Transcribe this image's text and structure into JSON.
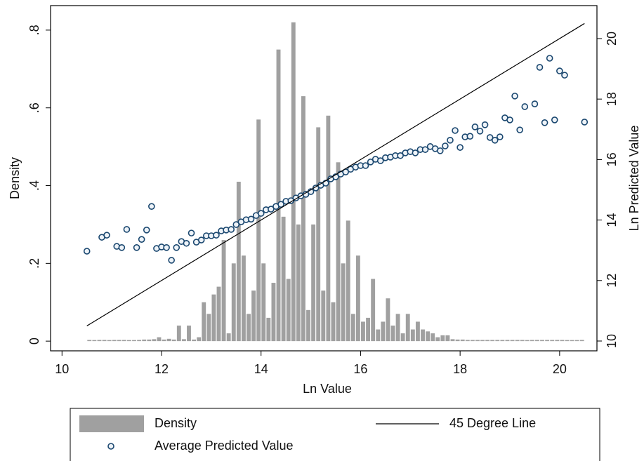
{
  "chart_data": {
    "type": "combo",
    "xlabel": "Ln Value",
    "ylabel": "Density",
    "y2label": "Ln Predicted Value",
    "xlim": [
      9.77,
      20.75
    ],
    "xticks": [
      10,
      12,
      14,
      16,
      18,
      20
    ],
    "ylim": [
      -0.025,
      0.863
    ],
    "yticks": [
      {
        "value": 0,
        "label": "0"
      },
      {
        "value": 0.2,
        "label": ".2"
      },
      {
        "value": 0.4,
        "label": ".4"
      },
      {
        "value": 0.6,
        "label": ".6"
      },
      {
        "value": 0.8,
        "label": ".8"
      }
    ],
    "y2lim": [
      9.675,
      21.09
    ],
    "y2ticks": [
      10,
      12,
      14,
      16,
      18,
      20
    ],
    "grid": false,
    "legend": "bottom",
    "series": [
      {
        "name": "Density",
        "type": "histogram",
        "color": "#a0a0a0",
        "bins": [
          10.5,
          10.6,
          10.7,
          10.8,
          10.9,
          11.0,
          11.1,
          11.2,
          11.3,
          11.4,
          11.5,
          11.6,
          11.7,
          11.8,
          11.9,
          12.0,
          12.1,
          12.2,
          12.3,
          12.4,
          12.5,
          12.6,
          12.7,
          12.8,
          12.9,
          13.0,
          13.1,
          13.2,
          13.3,
          13.4,
          13.5,
          13.6,
          13.7,
          13.8,
          13.9,
          14.0,
          14.1,
          14.2,
          14.3,
          14.4,
          14.5,
          14.6,
          14.7,
          14.8,
          14.9,
          15.0,
          15.1,
          15.2,
          15.3,
          15.4,
          15.5,
          15.6,
          15.7,
          15.8,
          15.9,
          16.0,
          16.1,
          16.2,
          16.3,
          16.4,
          16.5,
          16.6,
          16.7,
          16.8,
          16.9,
          17.0,
          17.1,
          17.2,
          17.3,
          17.4,
          17.5,
          17.6,
          17.7,
          17.8,
          17.9,
          18.0,
          18.1,
          18.2,
          18.3,
          18.4,
          18.5,
          18.6,
          18.7,
          18.8,
          18.9,
          19.0,
          19.1,
          19.2,
          19.3,
          19.4,
          19.5,
          19.6,
          19.7,
          19.8,
          19.9,
          20.0,
          20.1,
          20.2,
          20.3,
          20.4,
          20.5
        ],
        "values": [
          0.003,
          0,
          0.003,
          0.003,
          0,
          0.003,
          0.003,
          0.003,
          0,
          0,
          0.003,
          0.004,
          0.004,
          0.005,
          0.01,
          0.004,
          0.006,
          0.004,
          0.04,
          0.005,
          0.04,
          0.004,
          0.01,
          0.1,
          0.07,
          0.12,
          0.14,
          0.26,
          0.02,
          0.2,
          0.41,
          0.22,
          0.07,
          0.13,
          0.57,
          0.2,
          0.06,
          0.15,
          0.75,
          0.32,
          0.16,
          0.82,
          0.3,
          0.63,
          0.08,
          0.3,
          0.55,
          0.13,
          0.58,
          0.1,
          0.46,
          0.2,
          0.31,
          0.07,
          0.22,
          0.05,
          0.06,
          0.16,
          0.03,
          0.05,
          0.11,
          0.04,
          0.07,
          0.02,
          0.07,
          0.03,
          0.05,
          0.03,
          0.025,
          0.02,
          0.01,
          0.015,
          0.015,
          0.005,
          0.004,
          0.004,
          0.003,
          0.003,
          0.003,
          0.003,
          0.003,
          0.003,
          0.003,
          0.003,
          0.003,
          0.003,
          0.003,
          0.003,
          0,
          0.003,
          0.003,
          0.003,
          0.003,
          0.003,
          0.003,
          0.003,
          0,
          0,
          0,
          0.003
        ]
      },
      {
        "name": "Average Predicted Value",
        "type": "scatter",
        "axis": "y2",
        "color": "#1a476f",
        "x": [
          10.5,
          10.8,
          10.9,
          11.1,
          11.2,
          11.3,
          11.5,
          11.6,
          11.7,
          11.8,
          11.9,
          12.0,
          12.1,
          12.2,
          12.3,
          12.4,
          12.5,
          12.6,
          12.7,
          12.8,
          12.9,
          13.0,
          13.1,
          13.2,
          13.3,
          13.4,
          13.5,
          13.6,
          13.7,
          13.8,
          13.9,
          14.0,
          14.1,
          14.2,
          14.3,
          14.4,
          14.5,
          14.6,
          14.7,
          14.8,
          14.9,
          15.0,
          15.1,
          15.2,
          15.3,
          15.4,
          15.5,
          15.6,
          15.7,
          15.8,
          15.9,
          16.0,
          16.1,
          16.2,
          16.3,
          16.4,
          16.5,
          16.6,
          16.7,
          16.8,
          16.9,
          17.0,
          17.1,
          17.2,
          17.3,
          17.4,
          17.5,
          17.6,
          17.7,
          17.8,
          17.9,
          18.0,
          18.1,
          18.2,
          18.3,
          18.4,
          18.5,
          18.6,
          18.7,
          18.8,
          18.9,
          19.0,
          19.1,
          19.2,
          19.3,
          19.5,
          19.6,
          19.7,
          19.8,
          19.9,
          20.0,
          20.1,
          20.5
        ],
        "values": [
          12.97,
          13.43,
          13.5,
          13.13,
          13.09,
          13.69,
          13.09,
          13.36,
          13.67,
          14.45,
          13.06,
          13.11,
          13.09,
          12.67,
          13.09,
          13.29,
          13.23,
          13.57,
          13.27,
          13.34,
          13.48,
          13.48,
          13.5,
          13.64,
          13.67,
          13.69,
          13.85,
          13.94,
          14.01,
          14.03,
          14.15,
          14.22,
          14.34,
          14.36,
          14.45,
          14.52,
          14.62,
          14.64,
          14.73,
          14.8,
          14.85,
          14.94,
          15.06,
          15.15,
          15.22,
          15.36,
          15.43,
          15.52,
          15.59,
          15.68,
          15.75,
          15.8,
          15.8,
          15.92,
          16.01,
          15.96,
          16.06,
          16.08,
          16.13,
          16.13,
          16.22,
          16.26,
          16.22,
          16.33,
          16.33,
          16.43,
          16.36,
          16.29,
          16.45,
          16.64,
          16.96,
          16.4,
          16.75,
          16.77,
          17.08,
          16.94,
          17.15,
          16.73,
          16.64,
          16.75,
          17.38,
          17.31,
          18.1,
          16.98,
          17.75,
          17.84,
          19.05,
          17.22,
          19.35,
          17.31,
          18.93,
          18.79,
          17.24
        ]
      },
      {
        "name": "45 Degree Line",
        "type": "line",
        "axis": "y2",
        "color": "#000000",
        "x": [
          10.5,
          20.5
        ],
        "values": [
          10.5,
          20.5
        ]
      }
    ]
  }
}
